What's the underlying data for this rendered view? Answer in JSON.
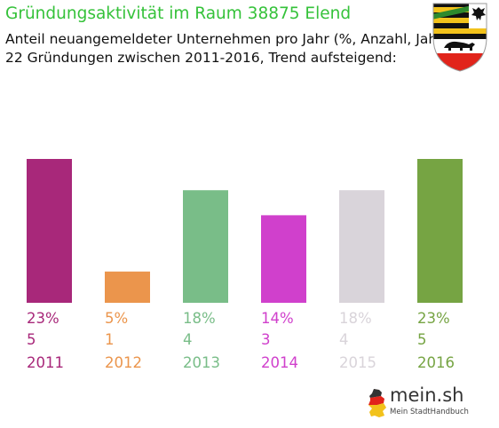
{
  "header": {
    "title": "Gründungsaktivität im Raum 38875 Elend",
    "subtitle_line1": "Anteil neuangemeldeter Unternehmen pro Jahr (%, Anzahl, Jahr)",
    "subtitle_line2": "22 Gründungen zwischen 2011-2016, Trend aufsteigend:"
  },
  "crest": {
    "icon": "saxony-anhalt-coat-of-arms-icon"
  },
  "brand": {
    "name": "mein.sh",
    "tagline": "Mein StadtHandbuch",
    "icon": "germany-map-icon"
  },
  "colors": {
    "title": "#35c23a",
    "bars": [
      "#a8287a",
      "#eb954c",
      "#79bd88",
      "#d040cc",
      "#d9d4da",
      "#76a443"
    ]
  },
  "chart_data": {
    "type": "bar",
    "categories": [
      "2011",
      "2012",
      "2013",
      "2014",
      "2015",
      "2016"
    ],
    "values": [
      23,
      5,
      18,
      14,
      18,
      23
    ],
    "percent_labels": [
      "23%",
      "5%",
      "18%",
      "14%",
      "18%",
      "23%"
    ],
    "count_labels": [
      "5",
      "1",
      "4",
      "3",
      "4",
      "5"
    ],
    "counts": [
      5,
      1,
      4,
      3,
      4,
      5
    ],
    "ylim": [
      0,
      23
    ],
    "grid": false,
    "legend": "none"
  }
}
